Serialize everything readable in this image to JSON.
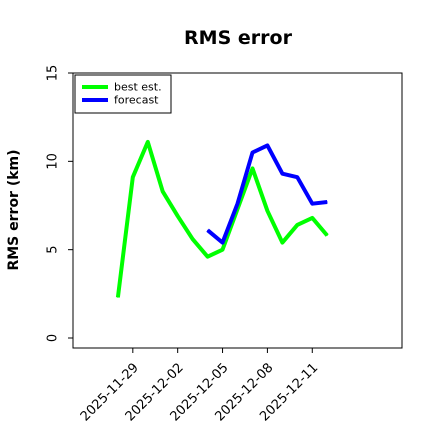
{
  "chart_data": {
    "type": "line",
    "title": "RMS error",
    "xlabel": "",
    "ylabel": "RMS error (km)",
    "xlim": [
      "2025-11-25",
      "2025-12-17"
    ],
    "ylim": [
      0,
      15
    ],
    "yticks": [
      0,
      5,
      10,
      15
    ],
    "xticks": [
      "2025-11-29",
      "2025-12-02",
      "2025-12-05",
      "2025-12-08",
      "2025-12-11"
    ],
    "legend": {
      "position": "top-left"
    },
    "grid": false,
    "series": [
      {
        "name": "best est.",
        "color": "#00ff00",
        "x": [
          "2025-11-28",
          "2025-11-29",
          "2025-11-30",
          "2025-12-01",
          "2025-12-02",
          "2025-12-03",
          "2025-12-04",
          "2025-12-05",
          "2025-12-06",
          "2025-12-07",
          "2025-12-08",
          "2025-12-09",
          "2025-12-10",
          "2025-12-11",
          "2025-12-12"
        ],
        "values": [
          2.3,
          9.1,
          11.1,
          8.3,
          6.9,
          5.6,
          4.6,
          5.0,
          7.3,
          9.6,
          7.2,
          5.4,
          6.4,
          6.8,
          5.8
        ]
      },
      {
        "name": "forecast",
        "color": "#0000ff",
        "x": [
          "2025-12-04",
          "2025-12-05",
          "2025-12-06",
          "2025-12-07",
          "2025-12-08",
          "2025-12-09",
          "2025-12-10",
          "2025-12-11",
          "2025-12-12"
        ],
        "values": [
          6.1,
          5.4,
          7.6,
          10.5,
          10.9,
          9.3,
          9.1,
          7.6,
          7.7
        ]
      }
    ]
  }
}
